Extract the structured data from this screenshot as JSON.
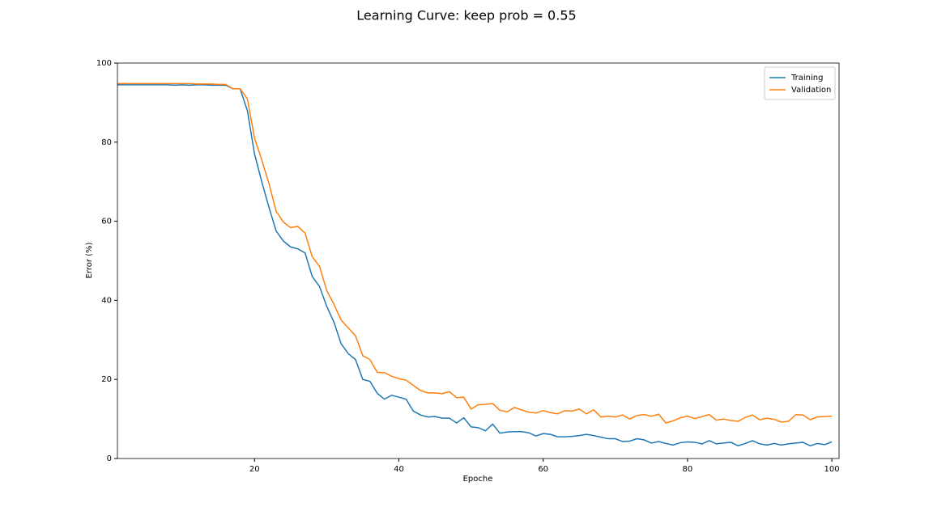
{
  "chart_data": {
    "type": "line",
    "title": "Learning Curve: keep prob = 0.55",
    "x_label": "Epoche",
    "y_label": "Error (%)",
    "x": [
      1,
      2,
      3,
      4,
      5,
      6,
      7,
      8,
      9,
      10,
      11,
      12,
      13,
      14,
      15,
      16,
      17,
      18,
      19,
      20,
      21,
      22,
      23,
      24,
      25,
      26,
      27,
      28,
      29,
      30,
      31,
      32,
      33,
      34,
      35,
      36,
      37,
      38,
      39,
      40,
      41,
      42,
      43,
      44,
      45,
      46,
      47,
      48,
      49,
      50,
      51,
      52,
      53,
      54,
      55,
      56,
      57,
      58,
      59,
      60,
      61,
      62,
      63,
      64,
      65,
      66,
      67,
      68,
      69,
      70,
      71,
      72,
      73,
      74,
      75,
      76,
      77,
      78,
      79,
      80,
      81,
      82,
      83,
      84,
      85,
      86,
      87,
      88,
      89,
      90,
      91,
      92,
      93,
      94,
      95,
      96,
      97,
      98,
      99,
      100
    ],
    "series": [
      {
        "name": "Training",
        "color": "#1f77b4",
        "values": [
          94.5,
          94.5,
          94.5,
          94.5,
          94.5,
          94.5,
          94.5,
          94.5,
          94.4,
          94.5,
          94.4,
          94.5,
          94.5,
          94.4,
          94.4,
          94.4,
          93.5,
          93.5,
          88,
          77,
          70,
          63.5,
          57.5,
          55,
          53.5,
          53,
          52,
          46,
          43.5,
          38.5,
          34.5,
          29,
          26.5,
          25,
          20,
          19.5,
          16.5,
          15,
          16,
          15.5,
          15,
          12,
          11,
          10.5,
          10.6,
          10.2,
          10.2,
          9,
          10.3,
          8,
          7.8,
          7,
          8.7,
          6.4,
          6.7,
          6.8,
          6.8,
          6.5,
          5.7,
          6.3,
          6.1,
          5.5,
          5.5,
          5.6,
          5.8,
          6.1,
          5.8,
          5.4,
          5,
          5,
          4.3,
          4.4,
          5,
          4.7,
          3.9,
          4.3,
          3.8,
          3.4,
          4,
          4.2,
          4.1,
          3.7,
          4.5,
          3.7,
          3.9,
          4.1,
          3.2,
          3.8,
          4.5,
          3.7,
          3.4,
          3.8,
          3.4,
          3.7,
          3.9,
          4.1,
          3.2,
          3.8,
          3.5,
          4.2
        ]
      },
      {
        "name": "Validation",
        "color": "#ff7f0e",
        "values": [
          94.8,
          94.8,
          94.8,
          94.8,
          94.8,
          94.8,
          94.8,
          94.8,
          94.8,
          94.8,
          94.8,
          94.7,
          94.7,
          94.7,
          94.6,
          94.6,
          93.5,
          93.5,
          91,
          81,
          75.5,
          69.5,
          62.5,
          59.8,
          58.4,
          58.7,
          57,
          51,
          48.6,
          42.5,
          39,
          35,
          33,
          31,
          26,
          25,
          21.8,
          21.7,
          20.8,
          20.2,
          19.8,
          18.5,
          17.2,
          16.6,
          16.6,
          16.4,
          16.9,
          15.4,
          15.5,
          12.5,
          13.6,
          13.7,
          13.9,
          12.2,
          11.8,
          12.9,
          12.3,
          11.7,
          11.5,
          12.1,
          11.6,
          11.3,
          12.1,
          12,
          12.5,
          11.3,
          12.3,
          10.5,
          10.7,
          10.5,
          11,
          10,
          10.9,
          11.1,
          10.7,
          11.2,
          9,
          9.5,
          10.3,
          10.7,
          10.1,
          10.6,
          11.1,
          9.7,
          10,
          9.6,
          9.4,
          10.4,
          11,
          9.8,
          10.2,
          9.9,
          9.2,
          9.4,
          11.1,
          11,
          9.8,
          10.5,
          10.6,
          10.7
        ]
      }
    ],
    "xlim": [
      1,
      101
    ],
    "ylim": [
      0,
      100
    ],
    "xticks": [
      20,
      40,
      60,
      80,
      100
    ],
    "yticks": [
      0,
      20,
      40,
      60,
      80,
      100
    ],
    "grid": false,
    "legend": "upper right"
  }
}
